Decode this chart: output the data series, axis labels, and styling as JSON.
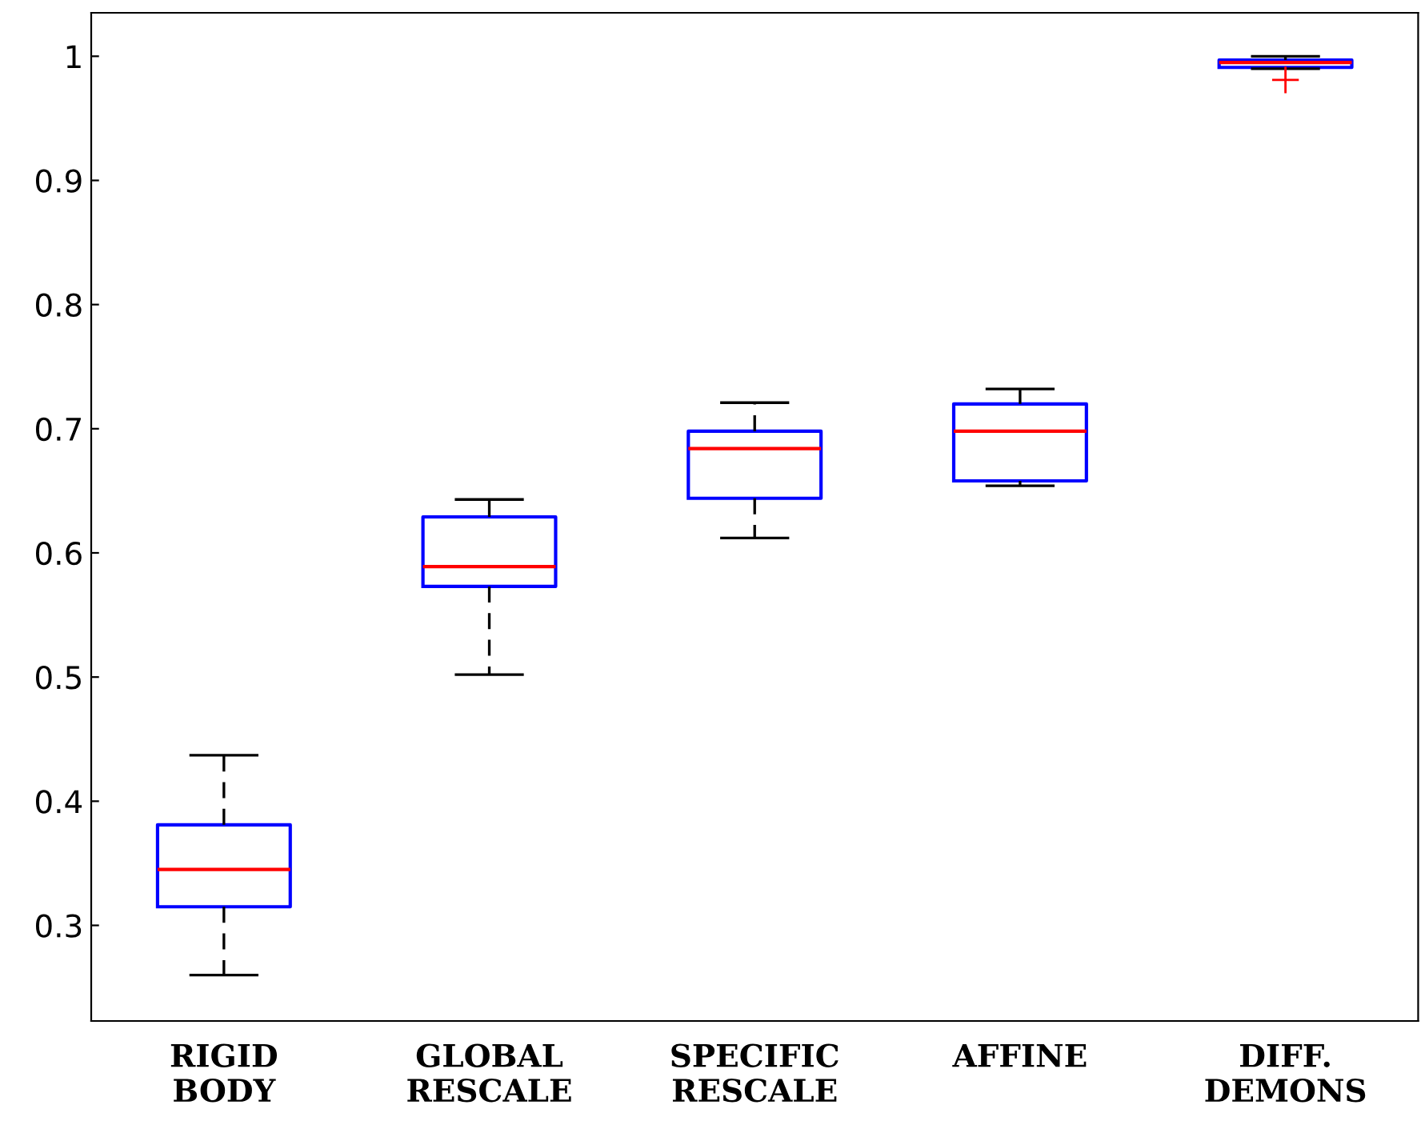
{
  "chart_data": {
    "type": "box",
    "categories": [
      "RIGID\nBODY",
      "GLOBAL\nRESCALE",
      "SPECIFIC\nRESCALE",
      "AFFINE",
      "DIFF.\nDEMONS"
    ],
    "boxes": [
      {
        "low": 0.26,
        "q1": 0.315,
        "median": 0.345,
        "q3": 0.381,
        "high": 0.437
      },
      {
        "low": 0.502,
        "q1": 0.573,
        "median": 0.589,
        "q3": 0.629,
        "high": 0.643
      },
      {
        "low": 0.612,
        "q1": 0.644,
        "median": 0.684,
        "q3": 0.698,
        "high": 0.721
      },
      {
        "low": 0.654,
        "q1": 0.658,
        "median": 0.698,
        "q3": 0.72,
        "high": 0.732
      },
      {
        "low": 0.99,
        "q1": 0.991,
        "median": 0.995,
        "q3": 0.997,
        "high": 1.0,
        "outliers": [
          0.981
        ]
      }
    ],
    "color": "#0000ff",
    "ylim": [
      0.223,
      1.035
    ],
    "yticks": [
      0.3,
      0.4,
      0.5,
      0.6,
      0.7,
      0.8,
      0.9,
      1
    ],
    "grid": false
  }
}
